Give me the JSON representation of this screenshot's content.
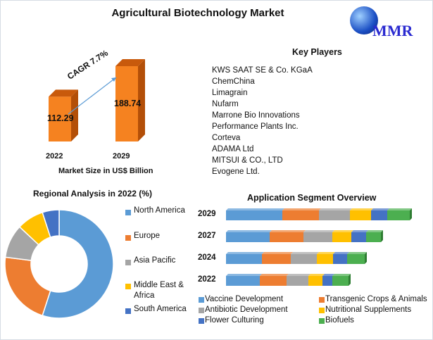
{
  "title": "Agricultural Biotechnology Market",
  "logo_text": "MMR",
  "key_players": {
    "heading": "Key Players",
    "items": [
      "KWS SAAT SE & Co. KGaA",
      "ChemChina",
      "Limagrain",
      "Nufarm",
      "Marrone Bio Innovations",
      "Performance Plants Inc.",
      "Corteva",
      "ADAMA Ltd",
      "MITSUI & CO., LTD",
      "Evogene Ltd."
    ]
  },
  "chart_data": [
    {
      "type": "bar",
      "title": "Market Size in US$ Billion",
      "categories": [
        "2022",
        "2029"
      ],
      "values": [
        112.29,
        188.74
      ],
      "labels": [
        "112.29",
        "188.74"
      ],
      "annotation": "CAGR 7.7%",
      "color": "#f58220"
    },
    {
      "type": "pie",
      "title": "Regional Analysis in 2022 (%)",
      "categories": [
        "North America",
        "Europe",
        "Asia Pacific",
        "Middle East & Africa",
        "South America"
      ],
      "values": [
        55,
        22,
        10,
        8,
        5
      ],
      "colors": [
        "#5b9bd5",
        "#ed7d31",
        "#a5a5a5",
        "#ffc000",
        "#4472c4"
      ]
    },
    {
      "type": "bar",
      "stacked": true,
      "orientation": "horizontal",
      "title": "Application Segment Overview",
      "categories": [
        "2029",
        "2027",
        "2024",
        "2022"
      ],
      "series": [
        {
          "name": "Vaccine Development",
          "color": "#5b9bd5",
          "values": [
            80,
            62,
            51,
            48
          ]
        },
        {
          "name": "Transgenic Crops & Animals",
          "color": "#ed7d31",
          "values": [
            52,
            48,
            41,
            38
          ]
        },
        {
          "name": "Antibiotic Development",
          "color": "#a5a5a5",
          "values": [
            44,
            41,
            37,
            31
          ]
        },
        {
          "name": "Nutritional Supplements",
          "color": "#ffc000",
          "values": [
            30,
            27,
            23,
            20
          ]
        },
        {
          "name": "Flower Culturing",
          "color": "#4472c4",
          "values": [
            23,
            21,
            20,
            14
          ]
        },
        {
          "name": "Biofuels",
          "color": "#4caf50",
          "values": [
            32,
            21,
            25,
            23
          ]
        }
      ]
    }
  ]
}
